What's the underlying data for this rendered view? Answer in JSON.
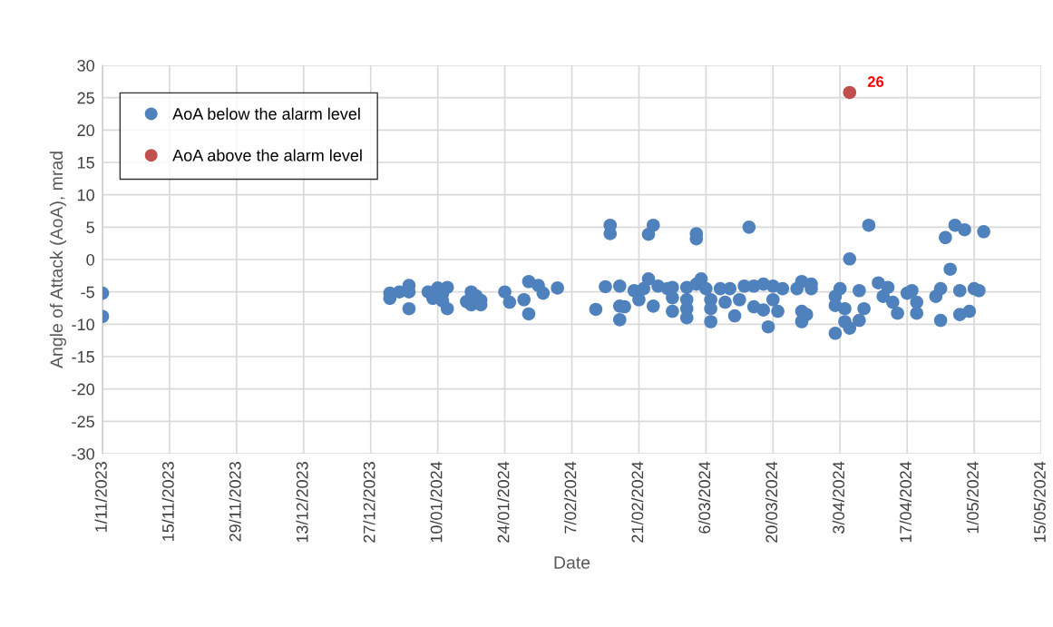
{
  "chart_data": {
    "type": "scatter",
    "xlabel": "Date",
    "ylabel": "Angle of Attack (AoA), mrad",
    "xlim": [
      "2023-11-01",
      "2024-05-15"
    ],
    "xticks": [
      {
        "value": "2023-11-01",
        "label": "1/11/2023"
      },
      {
        "value": "2023-11-15",
        "label": "15/11/2023"
      },
      {
        "value": "2023-11-29",
        "label": "29/11/2023"
      },
      {
        "value": "2023-12-13",
        "label": "13/12/2023"
      },
      {
        "value": "2023-12-27",
        "label": "27/12/2023"
      },
      {
        "value": "2024-01-10",
        "label": "10/01/2024"
      },
      {
        "value": "2024-01-24",
        "label": "24/01/2024"
      },
      {
        "value": "2024-02-07",
        "label": "7/02/2024"
      },
      {
        "value": "2024-02-21",
        "label": "21/02/2024"
      },
      {
        "value": "2024-03-06",
        "label": "6/03/2024"
      },
      {
        "value": "2024-03-20",
        "label": "20/03/2024"
      },
      {
        "value": "2024-04-03",
        "label": "3/04/2024"
      },
      {
        "value": "2024-04-17",
        "label": "17/04/2024"
      },
      {
        "value": "2024-05-01",
        "label": "1/05/2024"
      },
      {
        "value": "2024-05-15",
        "label": "15/05/2024"
      }
    ],
    "ylim": [
      -30,
      30
    ],
    "yticks": [
      -30,
      -25,
      -20,
      -15,
      -10,
      -5,
      0,
      5,
      10,
      15,
      20,
      25,
      30
    ],
    "grid": true,
    "legend": "top left",
    "marker": "circle",
    "series": [
      {
        "name": "AoA below the alarm level",
        "color": "#4f81bd",
        "x": [
          "2023-11-01",
          "2023-11-01",
          "2023-12-31",
          "2023-12-31",
          "2024-01-02",
          "2024-01-04",
          "2024-01-04",
          "2024-01-04",
          "2024-01-08",
          "2024-01-09",
          "2024-01-10",
          "2024-01-11",
          "2024-01-11",
          "2024-01-12",
          "2024-01-12",
          "2024-01-16",
          "2024-01-17",
          "2024-01-17",
          "2024-01-18",
          "2024-01-19",
          "2024-01-19",
          "2024-01-24",
          "2024-01-25",
          "2024-01-28",
          "2024-01-29",
          "2024-01-29",
          "2024-01-31",
          "2024-02-01",
          "2024-02-04",
          "2024-02-12",
          "2024-02-14",
          "2024-02-15",
          "2024-02-15",
          "2024-02-17",
          "2024-02-17",
          "2024-02-17",
          "2024-02-18",
          "2024-02-20",
          "2024-02-21",
          "2024-02-22",
          "2024-02-23",
          "2024-02-23",
          "2024-02-24",
          "2024-02-24",
          "2024-02-25",
          "2024-02-27",
          "2024-02-28",
          "2024-02-28",
          "2024-02-28",
          "2024-03-02",
          "2024-03-02",
          "2024-03-02",
          "2024-03-02",
          "2024-03-04",
          "2024-03-04",
          "2024-03-04",
          "2024-03-05",
          "2024-03-06",
          "2024-03-07",
          "2024-03-07",
          "2024-03-07",
          "2024-03-09",
          "2024-03-10",
          "2024-03-11",
          "2024-03-12",
          "2024-03-13",
          "2024-03-14",
          "2024-03-15",
          "2024-03-16",
          "2024-03-16",
          "2024-03-18",
          "2024-03-18",
          "2024-03-19",
          "2024-03-20",
          "2024-03-20",
          "2024-03-21",
          "2024-03-22",
          "2024-03-25",
          "2024-03-26",
          "2024-03-26",
          "2024-03-26",
          "2024-03-27",
          "2024-03-28",
          "2024-03-28",
          "2024-04-02",
          "2024-04-02",
          "2024-04-02",
          "2024-04-03",
          "2024-04-04",
          "2024-04-04",
          "2024-04-05",
          "2024-04-05",
          "2024-04-07",
          "2024-04-07",
          "2024-04-08",
          "2024-04-09",
          "2024-04-11",
          "2024-04-12",
          "2024-04-13",
          "2024-04-14",
          "2024-04-15",
          "2024-04-17",
          "2024-04-18",
          "2024-04-19",
          "2024-04-19",
          "2024-04-23",
          "2024-04-24",
          "2024-04-24",
          "2024-04-25",
          "2024-04-26",
          "2024-04-27",
          "2024-04-28",
          "2024-04-28",
          "2024-04-29",
          "2024-04-30",
          "2024-05-01",
          "2024-05-02",
          "2024-05-03"
        ],
        "values": [
          -5.2,
          -8.8,
          -5.2,
          -6,
          -5,
          -4,
          -5,
          -7.6,
          -5,
          -6,
          -4.4,
          -5.3,
          -6.4,
          -7.6,
          -4.3,
          -6.5,
          -5,
          -7,
          -5.6,
          -6.3,
          -7,
          -5,
          -6.6,
          -6.2,
          -3.4,
          -8.4,
          -4,
          -5.2,
          -4.4,
          -7.7,
          -4.2,
          5.3,
          4,
          -4.1,
          -7.2,
          -9.3,
          -7.3,
          -4.8,
          -6.2,
          -4.5,
          -3,
          3.9,
          5.3,
          -7.2,
          -4.1,
          -4.5,
          -4.3,
          -5.9,
          -8,
          -4.3,
          -6.2,
          -7.6,
          -9,
          4,
          3.2,
          -3.8,
          -3,
          -4.5,
          -6.2,
          -7.6,
          -9.6,
          -4.5,
          -6.6,
          -4.5,
          -8.7,
          -6.2,
          -4.1,
          5,
          -4.1,
          -7.3,
          -3.8,
          -7.8,
          -10.4,
          -4.1,
          -6.2,
          -8,
          -4.5,
          -4.5,
          -3.4,
          -8,
          -9.6,
          -8.5,
          -3.8,
          -4.5,
          -5.7,
          -7.1,
          -11.4,
          -4.5,
          -7.6,
          -9.6,
          -10.6,
          0.1,
          -4.8,
          -9.4,
          -7.6,
          5.3,
          -3.6,
          -5.7,
          -4.3,
          -6.6,
          -8.3,
          -5.2,
          -4.8,
          -6.6,
          -8.3,
          -5.7,
          -9.4,
          -4.5,
          3.4,
          -1.5,
          5.3,
          -4.8,
          -8.5,
          4.6,
          -8,
          -4.5,
          -4.8,
          4.3
        ]
      },
      {
        "name": "AoA above the alarm level",
        "color": "#c0504d",
        "x": [
          "2024-04-05"
        ],
        "values": [
          25.8
        ],
        "value_labels": [
          "26"
        ]
      }
    ]
  }
}
